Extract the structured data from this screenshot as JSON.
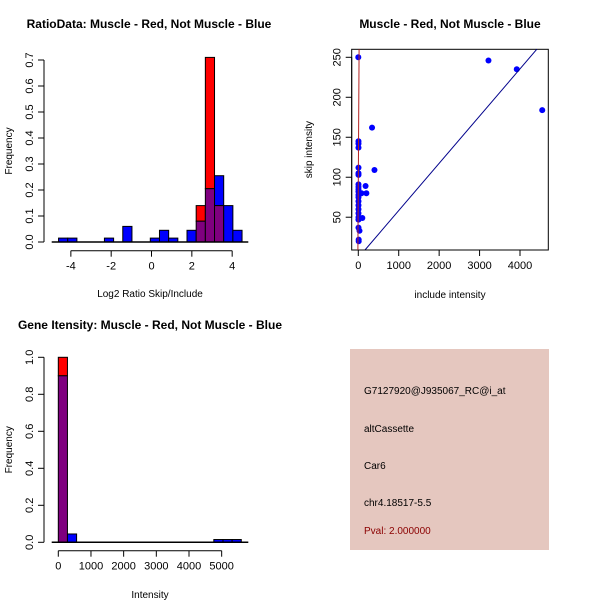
{
  "colors": {
    "muscle": "#ff0000",
    "not_muscle": "#0000ff",
    "overlap": "#7f007f",
    "line_fit": "#00008b",
    "line_muscle": "#b22222",
    "info_bg": "#e5c7bf",
    "pval": "#8b0000"
  },
  "chart_data": [
    {
      "type": "bar",
      "title": "RatioData: Muscle - Red, Not Muscle - Blue",
      "xlabel": "Log2 Ratio Skip/Include",
      "ylabel": "Frequency",
      "xlim": [
        -4.95,
        4.8
      ],
      "ylim": [
        0,
        0.7
      ],
      "xticks": [
        -4,
        -2,
        0,
        2,
        4
      ],
      "xtick_labels": [
        "-4",
        "-2",
        "0",
        "2",
        "4"
      ],
      "yticks": [
        0,
        0.1,
        0.2,
        0.3,
        0.4,
        0.5,
        0.6,
        0.7
      ],
      "ytick_labels": [
        "0.0",
        "0.1",
        "0.2",
        "0.3",
        "0.4",
        "0.5",
        "0.6",
        "0.7"
      ],
      "bin_start": -4.61,
      "bin_width": 0.455,
      "series": [
        {
          "name": "Not Muscle",
          "color": "blue",
          "values": [
            0.015,
            0.015,
            0,
            0,
            0,
            0.015,
            0,
            0.06,
            0,
            0,
            0.015,
            0.045,
            0.015,
            0,
            0.045,
            0.08,
            0.205,
            0.255,
            0.14,
            0.045
          ]
        },
        {
          "name": "Muscle",
          "color": "red",
          "values": [
            0,
            0,
            0,
            0,
            0,
            0,
            0,
            0,
            0,
            0,
            0,
            0,
            0,
            0,
            0,
            0.14,
            0.71,
            0.14,
            0,
            0
          ]
        }
      ]
    },
    {
      "type": "scatter",
      "title": "Muscle - Red, Not Muscle - Blue",
      "xlabel": "include intensity",
      "ylabel": "skip intensity",
      "xlim": [
        -163,
        4700
      ],
      "ylim": [
        9,
        260
      ],
      "xticks": [
        0,
        1000,
        2000,
        3000,
        4000
      ],
      "xtick_labels": [
        "0",
        "1000",
        "2000",
        "3000",
        "4000"
      ],
      "yticks": [
        50,
        100,
        150,
        200,
        250
      ],
      "ytick_labels": [
        "50",
        "100",
        "150",
        "200",
        "250"
      ],
      "points": [
        [
          0,
          250
        ],
        [
          5,
          145
        ],
        [
          5,
          142
        ],
        [
          5,
          137
        ],
        [
          5,
          112
        ],
        [
          5,
          105
        ],
        [
          5,
          103
        ],
        [
          5,
          91
        ],
        [
          5,
          88
        ],
        [
          5,
          85
        ],
        [
          5,
          82
        ],
        [
          5,
          78
        ],
        [
          5,
          75
        ],
        [
          5,
          70
        ],
        [
          5,
          65
        ],
        [
          5,
          60
        ],
        [
          5,
          55
        ],
        [
          5,
          50
        ],
        [
          5,
          47
        ],
        [
          5,
          37
        ],
        [
          10,
          22
        ],
        [
          10,
          20
        ],
        [
          30,
          33
        ],
        [
          80,
          80
        ],
        [
          100,
          49
        ],
        [
          180,
          89
        ],
        [
          200,
          80
        ],
        [
          340,
          162
        ],
        [
          400,
          109
        ],
        [
          3220,
          246
        ],
        [
          3920,
          235
        ],
        [
          4550,
          184
        ]
      ],
      "lines": [
        {
          "name": "fit-blue",
          "x": [
            165,
            4414
          ],
          "y": [
            9,
            260
          ]
        },
        {
          "name": "fit-red",
          "x": [
            -10,
            20
          ],
          "y": [
            9,
            260
          ]
        }
      ]
    },
    {
      "type": "bar",
      "title": "Gene Itensity: Muscle - Red, Not Muscle - Blue",
      "xlabel": "Intensity",
      "ylabel": "Frequency",
      "xlim": [
        -202,
        5815
      ],
      "ylim": [
        0,
        1.0
      ],
      "xticks": [
        0,
        1000,
        2000,
        3000,
        4000,
        5000
      ],
      "xtick_labels": [
        "0",
        "1000",
        "2000",
        "3000",
        "4000",
        "5000"
      ],
      "yticks": [
        0,
        0.2,
        0.4,
        0.6,
        0.8,
        1.0
      ],
      "ytick_labels": [
        "0.0",
        "0.2",
        "0.4",
        "0.6",
        "0.8",
        "1.0"
      ],
      "bin_start": 0,
      "bin_width": 280,
      "series": [
        {
          "name": "Not Muscle",
          "color": "blue",
          "values": [
            0.9,
            0.045,
            0,
            0,
            0,
            0,
            0,
            0,
            0,
            0,
            0,
            0,
            0,
            0,
            0,
            0,
            0,
            0.015,
            0.015,
            0.015
          ]
        },
        {
          "name": "Muscle",
          "color": "red",
          "values": [
            1.0,
            0,
            0,
            0,
            0,
            0,
            0,
            0,
            0,
            0,
            0,
            0,
            0,
            0,
            0,
            0,
            0,
            0,
            0,
            0
          ]
        }
      ]
    }
  ],
  "info": {
    "probe_id": "G7127920@J935067_RC@i_at",
    "event_type": "altCassette",
    "gene": "Car6",
    "location": "chr4.18517-5.5",
    "pval": "Pval: 2.000000"
  }
}
